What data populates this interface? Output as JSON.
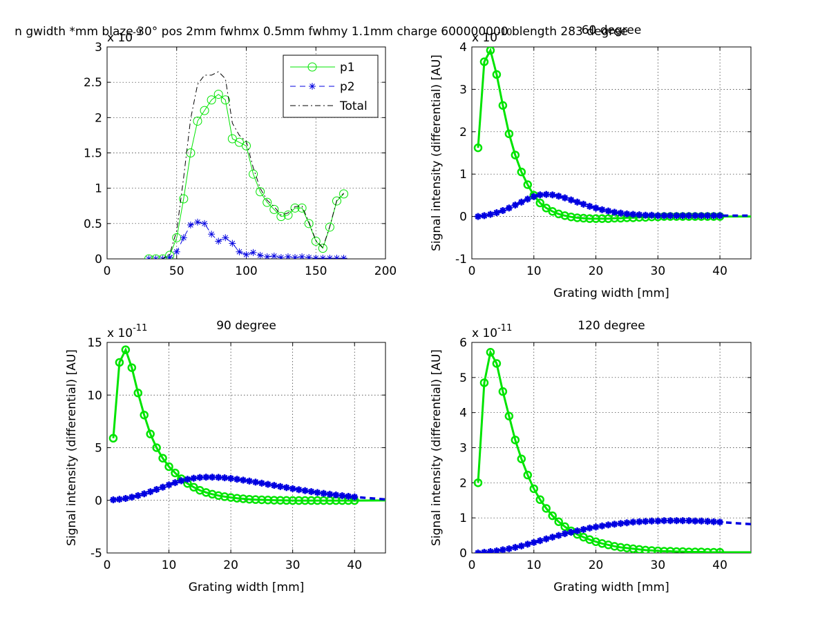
{
  "figure_title": "n gwidth *mm blaze 30° pos 2mm fwhmx 0.5mm fwhmy 1.1mm charge 600000000 blength 283 degree",
  "colors": {
    "p1": "#00e400",
    "p2": "#0000e0",
    "total": "#000000"
  },
  "chart_data": [
    {
      "type": "line",
      "title": "",
      "xlabel": "",
      "ylabel": "",
      "xlim": [
        0,
        200
      ],
      "ylim": [
        0,
        3
      ],
      "xticks": [
        0,
        50,
        100,
        150,
        200
      ],
      "yticks": [
        0,
        0.5,
        1,
        1.5,
        2,
        2.5,
        3
      ],
      "ytick_labels": [
        "0",
        "0.5",
        "1",
        "1.5",
        "2",
        "2.5",
        "3"
      ],
      "exponent_label": "x 10",
      "exponent_power": "-9",
      "grid": true,
      "legend": "top-right",
      "legend_entries": [
        "p1",
        "p2",
        "Total"
      ],
      "series": [
        {
          "name": "p1",
          "style": "circle-line",
          "x": [
            30,
            35,
            40,
            45,
            50,
            55,
            60,
            65,
            70,
            75,
            80,
            85,
            90,
            95,
            100,
            105,
            110,
            115,
            120,
            125,
            130,
            135,
            140,
            145,
            150,
            155,
            160,
            165,
            170
          ],
          "y": [
            0,
            0,
            0,
            0.05,
            0.3,
            0.85,
            1.5,
            1.95,
            2.1,
            2.25,
            2.33,
            2.25,
            1.7,
            1.65,
            1.6,
            1.2,
            0.95,
            0.8,
            0.7,
            0.6,
            0.62,
            0.72,
            0.72,
            0.5,
            0.25,
            0.15,
            0.45,
            0.82,
            0.92
          ]
        },
        {
          "name": "p2",
          "style": "star-dash",
          "x": [
            30,
            35,
            40,
            45,
            50,
            55,
            60,
            65,
            70,
            75,
            80,
            85,
            90,
            95,
            100,
            105,
            110,
            115,
            120,
            125,
            130,
            135,
            140,
            145,
            150,
            155,
            160,
            165,
            170
          ],
          "y": [
            0,
            0,
            0,
            0.02,
            0.1,
            0.3,
            0.48,
            0.52,
            0.5,
            0.35,
            0.25,
            0.3,
            0.22,
            0.1,
            0.06,
            0.09,
            0.05,
            0.03,
            0.04,
            0.02,
            0.03,
            0.02,
            0.03,
            0.02,
            0.01,
            0.01,
            0.01,
            0.01,
            0.01
          ]
        },
        {
          "name": "Total",
          "style": "dash-dot",
          "x": [
            30,
            35,
            40,
            45,
            50,
            55,
            60,
            65,
            70,
            75,
            80,
            85,
            90,
            95,
            100,
            105,
            110,
            115,
            120,
            125,
            130,
            135,
            140,
            145,
            150,
            155,
            160,
            165,
            170
          ],
          "y": [
            0,
            0,
            0,
            0.07,
            0.4,
            1.15,
            1.98,
            2.47,
            2.6,
            2.6,
            2.65,
            2.55,
            1.92,
            1.75,
            1.66,
            1.29,
            1.0,
            0.83,
            0.74,
            0.62,
            0.65,
            0.74,
            0.75,
            0.52,
            0.26,
            0.16,
            0.46,
            0.83,
            0.93
          ]
        }
      ]
    },
    {
      "type": "line",
      "title": "60 degree",
      "xlabel": "Grating width [mm]",
      "ylabel": "Signal intensity (differential) [AU]",
      "xlim": [
        0,
        45
      ],
      "ylim": [
        -1,
        4
      ],
      "xticks": [
        0,
        10,
        20,
        30,
        40
      ],
      "yticks": [
        -1,
        0,
        1,
        2,
        3,
        4
      ],
      "ytick_labels": [
        "-1",
        "0",
        "1",
        "2",
        "3",
        "4"
      ],
      "exponent_label": "x 10",
      "exponent_power": "-10",
      "grid": true,
      "series": [
        {
          "name": "p1",
          "style": "circle-line",
          "x": [
            1,
            2,
            3,
            4,
            5,
            6,
            7,
            8,
            9,
            10,
            11,
            12,
            13,
            14,
            15,
            16,
            17,
            18,
            19,
            20,
            21,
            22,
            23,
            24,
            25,
            26,
            27,
            28,
            29,
            30,
            31,
            32,
            33,
            34,
            35,
            36,
            37,
            38,
            39,
            40,
            45
          ],
          "y": [
            1.62,
            3.65,
            3.92,
            3.35,
            2.62,
            1.95,
            1.45,
            1.05,
            0.75,
            0.5,
            0.32,
            0.2,
            0.12,
            0.06,
            0.02,
            -0.01,
            -0.03,
            -0.04,
            -0.05,
            -0.05,
            -0.05,
            -0.05,
            -0.04,
            -0.04,
            -0.03,
            -0.03,
            -0.02,
            -0.02,
            -0.01,
            -0.01,
            0,
            0,
            0,
            0,
            0,
            0,
            0,
            0,
            0,
            0,
            0
          ]
        },
        {
          "name": "p2",
          "style": "star-dash",
          "x": [
            1,
            2,
            3,
            4,
            5,
            6,
            7,
            8,
            9,
            10,
            11,
            12,
            13,
            14,
            15,
            16,
            17,
            18,
            19,
            20,
            21,
            22,
            23,
            24,
            25,
            26,
            27,
            28,
            29,
            30,
            31,
            32,
            33,
            34,
            35,
            36,
            37,
            38,
            39,
            40,
            45
          ],
          "y": [
            0,
            0.02,
            0.05,
            0.09,
            0.14,
            0.2,
            0.27,
            0.34,
            0.41,
            0.47,
            0.51,
            0.52,
            0.51,
            0.48,
            0.44,
            0.39,
            0.34,
            0.29,
            0.24,
            0.2,
            0.16,
            0.13,
            0.1,
            0.08,
            0.06,
            0.05,
            0.04,
            0.03,
            0.03,
            0.02,
            0.02,
            0.02,
            0.02,
            0.02,
            0.02,
            0.02,
            0.02,
            0.02,
            0.02,
            0.02,
            0.02
          ]
        }
      ]
    },
    {
      "type": "line",
      "title": "90 degree",
      "xlabel": "Grating width [mm]",
      "ylabel": "Signal intensity (differential) [AU]",
      "xlim": [
        0,
        45
      ],
      "ylim": [
        -5,
        15
      ],
      "xticks": [
        0,
        10,
        20,
        30,
        40
      ],
      "yticks": [
        -5,
        0,
        5,
        10,
        15
      ],
      "ytick_labels": [
        "-5",
        "0",
        "5",
        "10",
        "15"
      ],
      "exponent_label": "x 10",
      "exponent_power": "-11",
      "grid": true,
      "series": [
        {
          "name": "p1",
          "style": "circle-line",
          "x": [
            1,
            2,
            3,
            4,
            5,
            6,
            7,
            8,
            9,
            10,
            11,
            12,
            13,
            14,
            15,
            16,
            17,
            18,
            19,
            20,
            21,
            22,
            23,
            24,
            25,
            26,
            27,
            28,
            29,
            30,
            31,
            32,
            33,
            34,
            35,
            36,
            37,
            38,
            39,
            40,
            45
          ],
          "y": [
            5.9,
            13.1,
            14.3,
            12.6,
            10.2,
            8.1,
            6.3,
            5.0,
            4.0,
            3.2,
            2.6,
            2.05,
            1.6,
            1.25,
            0.95,
            0.75,
            0.58,
            0.45,
            0.35,
            0.27,
            0.2,
            0.15,
            0.1,
            0.07,
            0.05,
            0.03,
            0.01,
            0,
            -0.01,
            -0.02,
            -0.02,
            -0.02,
            -0.02,
            -0.02,
            -0.02,
            -0.02,
            -0.02,
            -0.02,
            -0.02,
            -0.02,
            -0.01
          ]
        },
        {
          "name": "p2",
          "style": "star-dash",
          "x": [
            1,
            2,
            3,
            4,
            5,
            6,
            7,
            8,
            9,
            10,
            11,
            12,
            13,
            14,
            15,
            16,
            17,
            18,
            19,
            20,
            21,
            22,
            23,
            24,
            25,
            26,
            27,
            28,
            29,
            30,
            31,
            32,
            33,
            34,
            35,
            36,
            37,
            38,
            39,
            40,
            45
          ],
          "y": [
            0.05,
            0.1,
            0.18,
            0.3,
            0.45,
            0.62,
            0.82,
            1.03,
            1.25,
            1.47,
            1.68,
            1.86,
            2.0,
            2.1,
            2.17,
            2.2,
            2.2,
            2.18,
            2.14,
            2.08,
            2.0,
            1.92,
            1.83,
            1.73,
            1.63,
            1.52,
            1.42,
            1.31,
            1.21,
            1.11,
            1.01,
            0.92,
            0.83,
            0.74,
            0.66,
            0.58,
            0.51,
            0.44,
            0.38,
            0.32,
            0.08
          ]
        }
      ]
    },
    {
      "type": "line",
      "title": "120 degree",
      "xlabel": "Grating width [mm]",
      "ylabel": "Signal intensity (differential) [AU]",
      "xlim": [
        0,
        45
      ],
      "ylim": [
        0,
        6
      ],
      "xticks": [
        0,
        10,
        20,
        30,
        40
      ],
      "yticks": [
        0,
        1,
        2,
        3,
        4,
        5,
        6
      ],
      "ytick_labels": [
        "0",
        "1",
        "2",
        "3",
        "4",
        "5",
        "6"
      ],
      "exponent_label": "x 10",
      "exponent_power": "-11",
      "grid": true,
      "series": [
        {
          "name": "p1",
          "style": "circle-line",
          "x": [
            1,
            2,
            3,
            4,
            5,
            6,
            7,
            8,
            9,
            10,
            11,
            12,
            13,
            14,
            15,
            16,
            17,
            18,
            19,
            20,
            21,
            22,
            23,
            24,
            25,
            26,
            27,
            28,
            29,
            30,
            31,
            32,
            33,
            34,
            35,
            36,
            37,
            38,
            39,
            40,
            45
          ],
          "y": [
            2.0,
            4.85,
            5.72,
            5.4,
            4.6,
            3.9,
            3.22,
            2.68,
            2.22,
            1.83,
            1.52,
            1.27,
            1.06,
            0.89,
            0.75,
            0.63,
            0.53,
            0.45,
            0.38,
            0.32,
            0.27,
            0.23,
            0.19,
            0.16,
            0.14,
            0.12,
            0.1,
            0.08,
            0.07,
            0.06,
            0.05,
            0.05,
            0.04,
            0.04,
            0.03,
            0.03,
            0.03,
            0.02,
            0.02,
            0.02,
            0.02
          ]
        },
        {
          "name": "p2",
          "style": "star-dash",
          "x": [
            1,
            2,
            3,
            4,
            5,
            6,
            7,
            8,
            9,
            10,
            11,
            12,
            13,
            14,
            15,
            16,
            17,
            18,
            19,
            20,
            21,
            22,
            23,
            24,
            25,
            26,
            27,
            28,
            29,
            30,
            31,
            32,
            33,
            34,
            35,
            36,
            37,
            38,
            39,
            40,
            45
          ],
          "y": [
            0.0,
            0.02,
            0.04,
            0.06,
            0.09,
            0.12,
            0.16,
            0.2,
            0.25,
            0.3,
            0.35,
            0.4,
            0.45,
            0.5,
            0.55,
            0.59,
            0.63,
            0.67,
            0.71,
            0.74,
            0.77,
            0.8,
            0.82,
            0.84,
            0.86,
            0.88,
            0.89,
            0.9,
            0.91,
            0.91,
            0.92,
            0.92,
            0.92,
            0.92,
            0.92,
            0.91,
            0.91,
            0.9,
            0.89,
            0.88,
            0.82
          ]
        }
      ]
    }
  ]
}
